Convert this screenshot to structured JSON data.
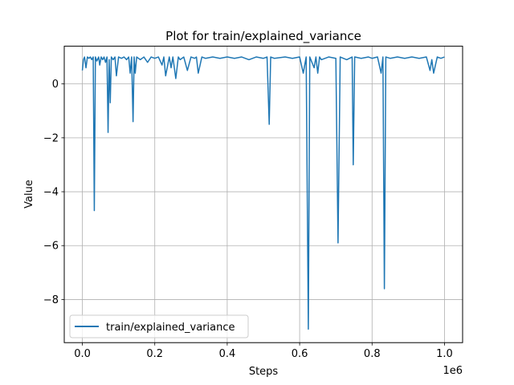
{
  "chart_data": {
    "type": "line",
    "title": "Plot for train/explained_variance",
    "xlabel": "Steps",
    "ylabel": "Value",
    "x_offset_label": "1e6",
    "xlim": [
      -0.05,
      1.05
    ],
    "ylim": [
      -9.6,
      1.4
    ],
    "x_ticks": [
      0.0,
      0.2,
      0.4,
      0.6,
      0.8,
      1.0
    ],
    "x_tick_labels": [
      "0.0",
      "0.2",
      "0.4",
      "0.6",
      "0.8",
      "1.0"
    ],
    "y_ticks": [
      0,
      -2,
      -4,
      -6,
      -8
    ],
    "y_tick_labels": [
      "0",
      "−2",
      "−4",
      "−6",
      "−8"
    ],
    "grid": true,
    "legend_position": "lower-left",
    "series": [
      {
        "name": "train/explained_variance",
        "color": "#1f77b4",
        "x": [
          0.0,
          0.003,
          0.006,
          0.01,
          0.014,
          0.018,
          0.022,
          0.026,
          0.03,
          0.033,
          0.036,
          0.04,
          0.045,
          0.048,
          0.052,
          0.056,
          0.06,
          0.064,
          0.068,
          0.071,
          0.074,
          0.077,
          0.08,
          0.085,
          0.09,
          0.094,
          0.1,
          0.108,
          0.115,
          0.122,
          0.128,
          0.132,
          0.136,
          0.14,
          0.143,
          0.146,
          0.15,
          0.16,
          0.17,
          0.18,
          0.19,
          0.2,
          0.21,
          0.22,
          0.225,
          0.23,
          0.24,
          0.245,
          0.25,
          0.258,
          0.265,
          0.27,
          0.28,
          0.29,
          0.3,
          0.31,
          0.315,
          0.32,
          0.33,
          0.34,
          0.36,
          0.38,
          0.4,
          0.42,
          0.44,
          0.46,
          0.48,
          0.5,
          0.51,
          0.516,
          0.52,
          0.53,
          0.56,
          0.58,
          0.6,
          0.61,
          0.618,
          0.624,
          0.628,
          0.64,
          0.645,
          0.65,
          0.655,
          0.66,
          0.68,
          0.7,
          0.706,
          0.712,
          0.73,
          0.745,
          0.748,
          0.752,
          0.77,
          0.79,
          0.8,
          0.815,
          0.825,
          0.83,
          0.834,
          0.838,
          0.85,
          0.87,
          0.89,
          0.91,
          0.93,
          0.95,
          0.96,
          0.965,
          0.97,
          0.98,
          0.99,
          1.0
        ],
        "y": [
          0.5,
          0.9,
          1.0,
          0.6,
          1.0,
          0.95,
          1.0,
          0.9,
          1.0,
          -4.7,
          1.0,
          0.85,
          1.0,
          0.7,
          1.0,
          0.9,
          1.0,
          0.8,
          1.0,
          -1.8,
          0.9,
          -0.7,
          1.0,
          0.9,
          1.0,
          0.3,
          1.0,
          0.95,
          1.0,
          0.9,
          1.0,
          0.4,
          1.0,
          -1.4,
          1.0,
          0.4,
          1.0,
          0.9,
          1.0,
          0.8,
          1.0,
          0.95,
          1.0,
          0.7,
          1.0,
          0.3,
          1.0,
          0.6,
          1.0,
          0.2,
          1.0,
          0.9,
          1.0,
          0.5,
          1.0,
          0.95,
          1.0,
          0.4,
          1.0,
          0.95,
          1.0,
          0.95,
          1.0,
          0.95,
          1.0,
          0.9,
          1.0,
          0.95,
          1.0,
          -1.5,
          1.0,
          0.95,
          1.0,
          0.95,
          1.0,
          0.4,
          1.0,
          -9.1,
          1.0,
          0.6,
          1.0,
          0.4,
          1.0,
          0.9,
          1.0,
          0.95,
          -5.9,
          1.0,
          0.9,
          1.0,
          -3.0,
          1.0,
          0.95,
          1.0,
          0.95,
          1.0,
          0.4,
          1.0,
          -7.6,
          1.0,
          0.95,
          1.0,
          0.95,
          1.0,
          0.95,
          1.0,
          0.5,
          0.9,
          0.4,
          1.0,
          0.95,
          1.0
        ]
      }
    ]
  }
}
